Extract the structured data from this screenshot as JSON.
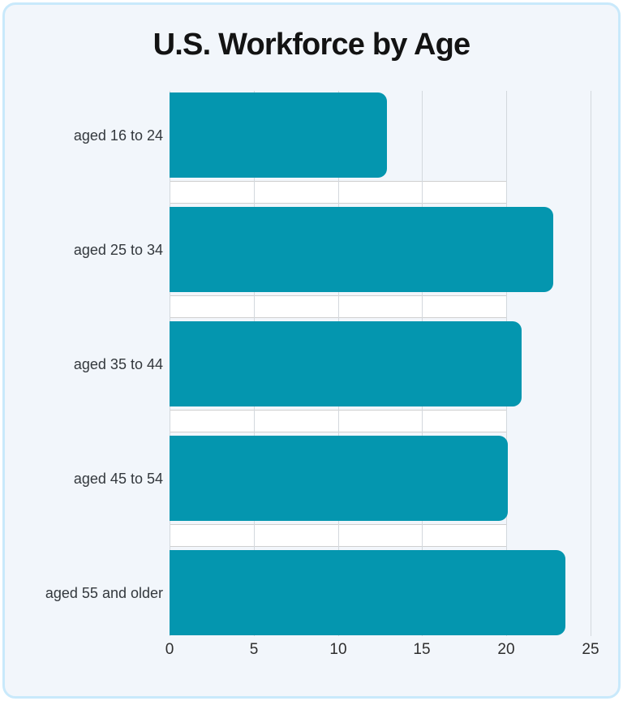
{
  "page": {
    "background_color": "#ffffff",
    "card_background_color": "#f2f6fb",
    "card_border_color": "#c9e9fb"
  },
  "chart_data": {
    "type": "bar",
    "orientation": "horizontal",
    "title": "U.S. Workforce by Age",
    "categories": [
      "aged 16 to 24",
      "aged 25 to 34",
      "aged 35 to 44",
      "aged 45 to 54",
      "aged 55 and older"
    ],
    "values": [
      12.9,
      22.8,
      20.9,
      20.1,
      23.5
    ],
    "xlabel": "",
    "ylabel": "",
    "xlim": [
      0,
      25
    ],
    "x_tick_labels": [
      "0",
      "5",
      "10",
      "15",
      "20",
      "25"
    ],
    "grid": "vertical gridlines at every x tick",
    "legend": "none",
    "bar_color": "#0496af",
    "gridline_color": "#d3d8dd",
    "gap_band": {
      "description": "white highlight band in each gap between bars",
      "x_range": [
        0,
        20
      ],
      "fill": "#ffffff",
      "border_color": "#cfcfcf"
    }
  }
}
